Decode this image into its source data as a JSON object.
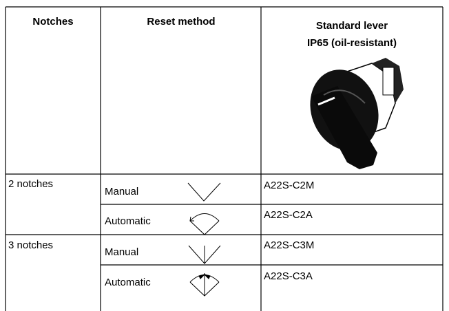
{
  "table": {
    "header": {
      "notches": "Notches",
      "reset_method": "Reset method",
      "lever": [
        "Standard lever",
        "IP65 (oil-resistant)"
      ]
    },
    "groups": [
      {
        "notches": "2 notches",
        "rows": [
          {
            "method": "Manual",
            "model": "A22S-C2M"
          },
          {
            "method": "Automatic",
            "model": "A22S-C2A"
          }
        ]
      },
      {
        "notches": "3 notches",
        "rows": [
          {
            "method": "Manual",
            "model": "A22S-C3M"
          },
          {
            "method": "Automatic",
            "model": "A22S-C3A"
          }
        ]
      }
    ]
  }
}
